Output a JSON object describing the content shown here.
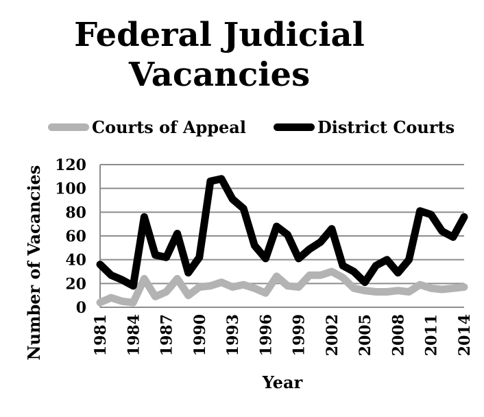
{
  "chart_data": {
    "type": "line",
    "title_lines": [
      "Federal Judicial",
      "Vacancies"
    ],
    "xlabel": "Year",
    "ylabel": "Number of Vacancies",
    "x": [
      1981,
      1982,
      1983,
      1984,
      1985,
      1986,
      1987,
      1988,
      1989,
      1990,
      1991,
      1992,
      1993,
      1994,
      1995,
      1996,
      1997,
      1998,
      1999,
      2000,
      2001,
      2002,
      2003,
      2004,
      2005,
      2006,
      2007,
      2008,
      2009,
      2010,
      2011,
      2012,
      2013,
      2014
    ],
    "xticks": [
      "1981",
      "1984",
      "1987",
      "1990",
      "1993",
      "1996",
      "1999",
      "2002",
      "2005",
      "2008",
      "2011",
      "2014"
    ],
    "yticks": [
      "0",
      "20",
      "40",
      "60",
      "80",
      "100",
      "120"
    ],
    "ylim": [
      0,
      120
    ],
    "grid": true,
    "legend_position": "top",
    "series": [
      {
        "name": "Courts of Appeal",
        "color": "#b3b3b3",
        "values": [
          4,
          8,
          5,
          4,
          24,
          9,
          13,
          24,
          10,
          17,
          18,
          21,
          17,
          19,
          16,
          12,
          26,
          18,
          17,
          27,
          27,
          30,
          25,
          16,
          14,
          13,
          13,
          14,
          13,
          19,
          16,
          15,
          16,
          17
        ]
      },
      {
        "name": "District Courts",
        "color": "#000000",
        "values": [
          36,
          27,
          23,
          18,
          76,
          44,
          42,
          62,
          29,
          42,
          106,
          108,
          91,
          83,
          52,
          41,
          68,
          61,
          41,
          49,
          55,
          66,
          35,
          30,
          21,
          35,
          40,
          29,
          40,
          81,
          78,
          64,
          59,
          76
        ]
      }
    ]
  }
}
